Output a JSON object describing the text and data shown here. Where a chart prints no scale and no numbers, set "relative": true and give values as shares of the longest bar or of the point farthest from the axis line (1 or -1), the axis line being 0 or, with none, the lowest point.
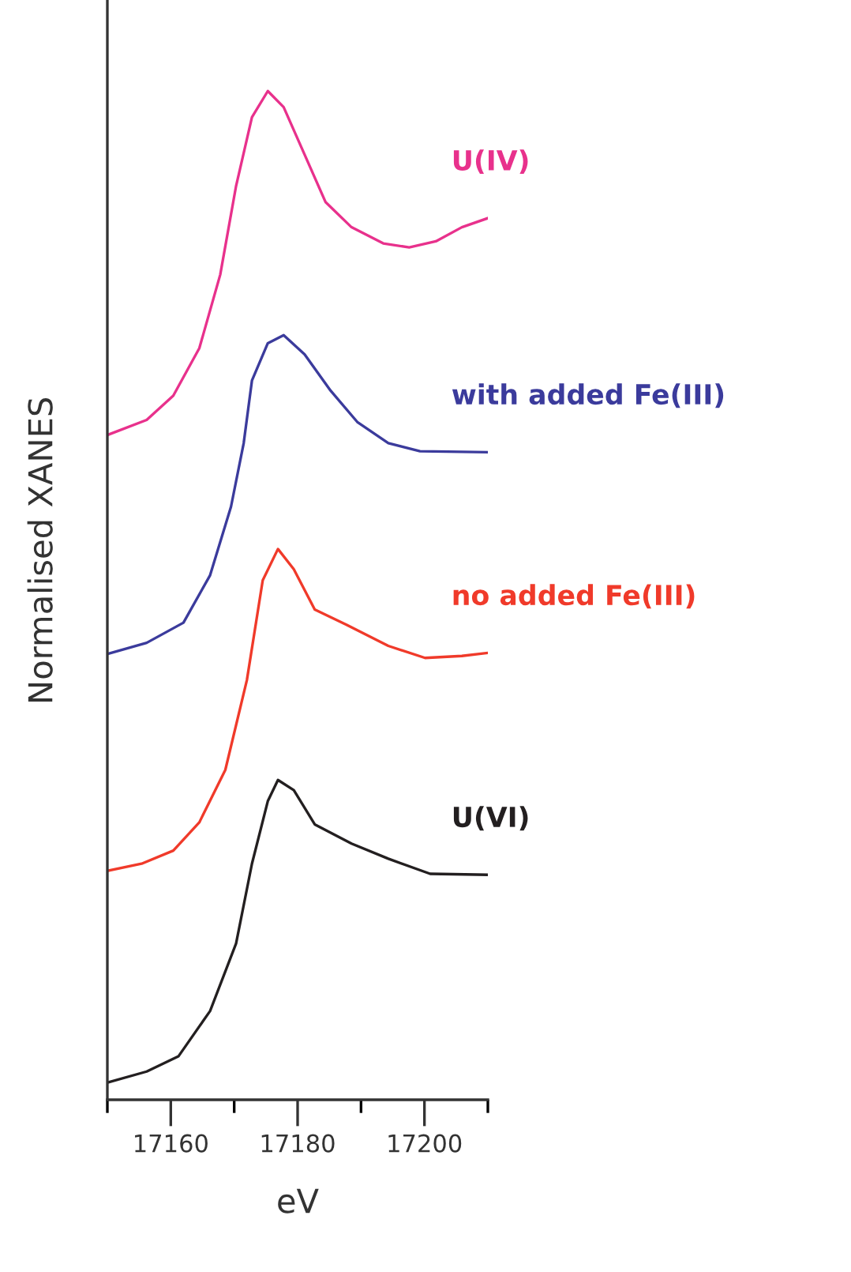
{
  "chart_data": {
    "type": "line",
    "relative": true,
    "xlabel": "eV",
    "ylabel": "Normalised XANES",
    "xlim": [
      17150,
      17210
    ],
    "xticks": [
      {
        "value": 17150,
        "label": null
      },
      17160,
      {
        "value": 17170,
        "label": null
      },
      17180,
      {
        "value": 17190,
        "label": null
      },
      17200,
      {
        "value": 17210,
        "label": null
      }
    ],
    "grid": false,
    "legend": false,
    "marker": "none",
    "line_style": "solid",
    "tick_labels": "x",
    "series": [
      {
        "name": "U(IV)",
        "color": "#e8318c",
        "x": [
          17150,
          17156.2,
          17160.4,
          17164.5,
          17167.8,
          17170.3,
          17172.8,
          17175.3,
          17177.8,
          17181.1,
          17184.4,
          17188.5,
          17193.5,
          17197.6,
          17201.8,
          17205.9,
          17210
        ],
        "values": [
          0.659,
          0.674,
          0.698,
          0.745,
          0.818,
          0.906,
          0.974,
          1.0,
          0.984,
          0.937,
          0.89,
          0.865,
          0.849,
          0.845,
          0.851,
          0.865,
          0.874
        ]
      },
      {
        "name": "with added Fe(III)",
        "color": "#3b3b9c",
        "x": [
          17150,
          17156.2,
          17162.0,
          17166.2,
          17169.5,
          17171.5,
          17172.8,
          17175.3,
          17177.8,
          17181.1,
          17185.2,
          17189.4,
          17194.3,
          17199.3,
          17210
        ],
        "values": [
          0.442,
          0.453,
          0.473,
          0.52,
          0.588,
          0.651,
          0.713,
          0.75,
          0.758,
          0.739,
          0.703,
          0.672,
          0.651,
          0.643,
          0.642
        ]
      },
      {
        "name": "no added Fe(III)",
        "color": "#f03a2a",
        "x": [
          17150,
          17155.4,
          17160.4,
          17164.5,
          17168.6,
          17172.0,
          17174.5,
          17176.9,
          17179.4,
          17182.7,
          17187.7,
          17194.3,
          17200.1,
          17205.9,
          17210
        ],
        "values": [
          0.227,
          0.234,
          0.247,
          0.275,
          0.327,
          0.416,
          0.515,
          0.546,
          0.526,
          0.486,
          0.471,
          0.45,
          0.438,
          0.44,
          0.443
        ]
      },
      {
        "name": "U(VI)",
        "color": "#231f20",
        "x": [
          17150,
          17156.2,
          17161.2,
          17166.2,
          17170.3,
          17172.8,
          17175.3,
          17176.9,
          17179.4,
          17182.7,
          17188.5,
          17194.3,
          17200.9,
          17210
        ],
        "values": [
          0.017,
          0.028,
          0.043,
          0.088,
          0.155,
          0.234,
          0.296,
          0.317,
          0.307,
          0.273,
          0.254,
          0.239,
          0.224,
          0.223
        ]
      }
    ]
  }
}
